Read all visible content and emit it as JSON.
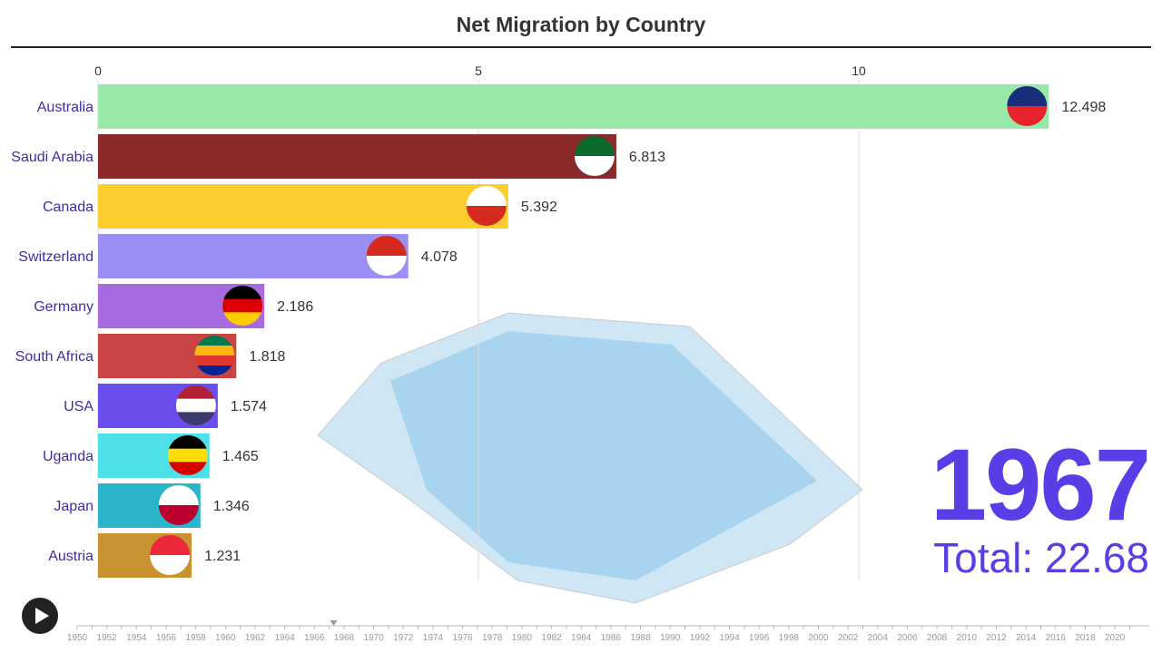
{
  "title": "Net Migration by Country",
  "year": "1967",
  "total": "Total: 22.68",
  "chart_data": {
    "type": "bar",
    "title": "Net Migration by Country",
    "orientation": "horizontal",
    "xlim": [
      0,
      13.2
    ],
    "xticks": [
      "0",
      "5",
      "10"
    ],
    "grid": true,
    "categories": [
      "Australia",
      "Saudi Arabia",
      "Canada",
      "Switzerland",
      "Germany",
      "South Africa",
      "USA",
      "Uganda",
      "Japan",
      "Austria"
    ],
    "values": [
      12.498,
      6.813,
      5.392,
      4.078,
      2.186,
      1.818,
      1.574,
      1.465,
      1.346,
      1.231
    ],
    "value_labels": [
      "12.498",
      "6.813",
      "5.392",
      "4.078",
      "2.186",
      "1.818",
      "1.574",
      "1.465",
      "1.346",
      "1.231"
    ],
    "colors": [
      "#98e8a8",
      "#8b2a2a",
      "#fdcd2e",
      "#9a8ff5",
      "#a86bdf",
      "#c94444",
      "#6b4ded",
      "#4de0e6",
      "#2ab5cc",
      "#c89330"
    ],
    "flag_colors": [
      [
        "#1a2d7a",
        "#e8232c"
      ],
      [
        "#0b6b2e",
        "#ffffff"
      ],
      [
        "#ffffff",
        "#d52b1e"
      ],
      [
        "#d52b1e",
        "#ffffff"
      ],
      [
        "#000000",
        "#dd0000",
        "#ffce00"
      ],
      [
        "#007a4d",
        "#ffb612",
        "#de3831",
        "#002395"
      ],
      [
        "#b22234",
        "#ffffff",
        "#3c3b6e"
      ],
      [
        "#000000",
        "#fcdc04",
        "#d90000"
      ],
      [
        "#ffffff",
        "#bc002d"
      ],
      [
        "#ed2939",
        "#ffffff"
      ]
    ]
  },
  "timeline": {
    "start": 1950,
    "end": 2021,
    "current": 1967.3,
    "labels": [
      "1950",
      "1952",
      "1954",
      "1956",
      "1958",
      "1960",
      "1962",
      "1964",
      "1966",
      "1968",
      "1970",
      "1972",
      "1974",
      "1976",
      "1978",
      "1980",
      "1982",
      "1984",
      "1986",
      "1988",
      "1990",
      "1992",
      "1994",
      "1996",
      "1998",
      "2000",
      "2002",
      "2004",
      "2006",
      "2008",
      "2010",
      "2012",
      "2014",
      "2016",
      "2018",
      "2020"
    ]
  },
  "play_icon": "play-icon"
}
